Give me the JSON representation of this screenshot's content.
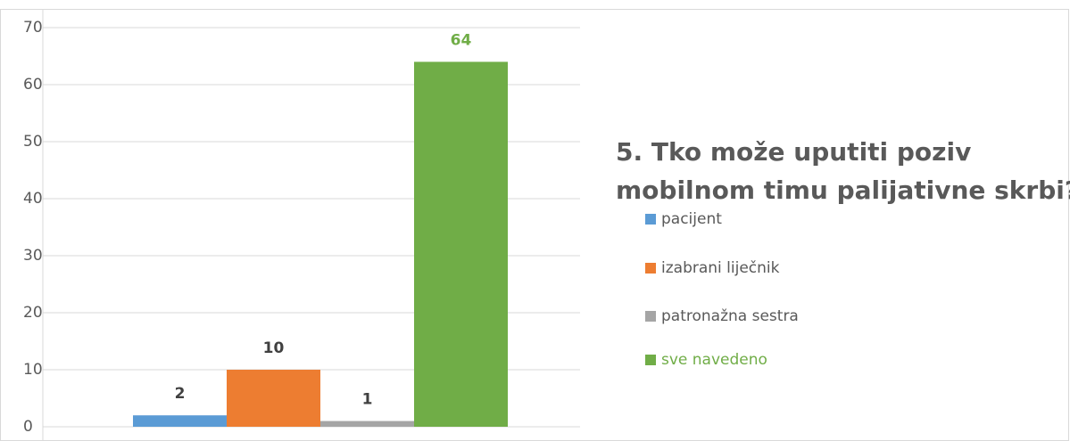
{
  "chart_data": {
    "type": "bar",
    "title": [
      "5. Tko može uputiti poziv",
      "mobilnom timu palijativne skrbi?"
    ],
    "categories": [
      null
    ],
    "series": [
      {
        "name": "pacijent",
        "color": "#5b9bd5",
        "label_color": "#404040",
        "values": [
          2
        ]
      },
      {
        "name": "izabrani liječnik",
        "color": "#ed7d31",
        "label_color": "#404040",
        "values": [
          10
        ]
      },
      {
        "name": "patronažna sestra",
        "color": "#a5a5a5",
        "label_color": "#404040",
        "values": [
          1
        ]
      },
      {
        "name": "sve navedeno",
        "color": "#70ad47",
        "label_color": "#70ad47",
        "values": [
          64
        ]
      }
    ],
    "ylim": [
      0,
      70
    ],
    "yticks": [
      0,
      10,
      20,
      30,
      40,
      50,
      60,
      70
    ],
    "grid": true,
    "legend": "right"
  }
}
